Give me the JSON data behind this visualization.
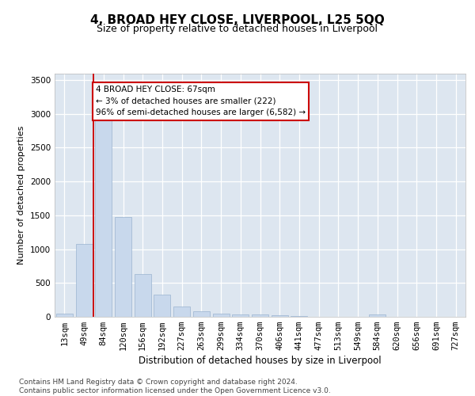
{
  "title": "4, BROAD HEY CLOSE, LIVERPOOL, L25 5QQ",
  "subtitle": "Size of property relative to detached houses in Liverpool",
  "xlabel": "Distribution of detached houses by size in Liverpool",
  "ylabel": "Number of detached properties",
  "bar_categories": [
    "13sqm",
    "49sqm",
    "84sqm",
    "120sqm",
    "156sqm",
    "192sqm",
    "227sqm",
    "263sqm",
    "299sqm",
    "334sqm",
    "370sqm",
    "406sqm",
    "441sqm",
    "477sqm",
    "513sqm",
    "549sqm",
    "584sqm",
    "620sqm",
    "656sqm",
    "691sqm",
    "727sqm"
  ],
  "bar_values": [
    50,
    1080,
    2900,
    1480,
    630,
    330,
    155,
    85,
    50,
    40,
    35,
    20,
    10,
    5,
    3,
    2,
    30,
    2,
    1,
    1,
    1
  ],
  "bar_color": "#c8d8ec",
  "bar_edgecolor": "#9ab4d0",
  "vline_x_index": 1.5,
  "vline_color": "#cc0000",
  "annotation_text": "4 BROAD HEY CLOSE: 67sqm\n← 3% of detached houses are smaller (222)\n96% of semi-detached houses are larger (6,582) →",
  "annotation_box_facecolor": "#ffffff",
  "annotation_box_edgecolor": "#cc0000",
  "ylim": [
    0,
    3600
  ],
  "yticks": [
    0,
    500,
    1000,
    1500,
    2000,
    2500,
    3000,
    3500
  ],
  "bg_color": "#ffffff",
  "plot_bg_color": "#dde6f0",
  "footer_text": "Contains HM Land Registry data © Crown copyright and database right 2024.\nContains public sector information licensed under the Open Government Licence v3.0.",
  "title_fontsize": 11,
  "subtitle_fontsize": 9,
  "xlabel_fontsize": 8.5,
  "ylabel_fontsize": 8,
  "tick_fontsize": 7.5,
  "annotation_fontsize": 7.5,
  "footer_fontsize": 6.5
}
